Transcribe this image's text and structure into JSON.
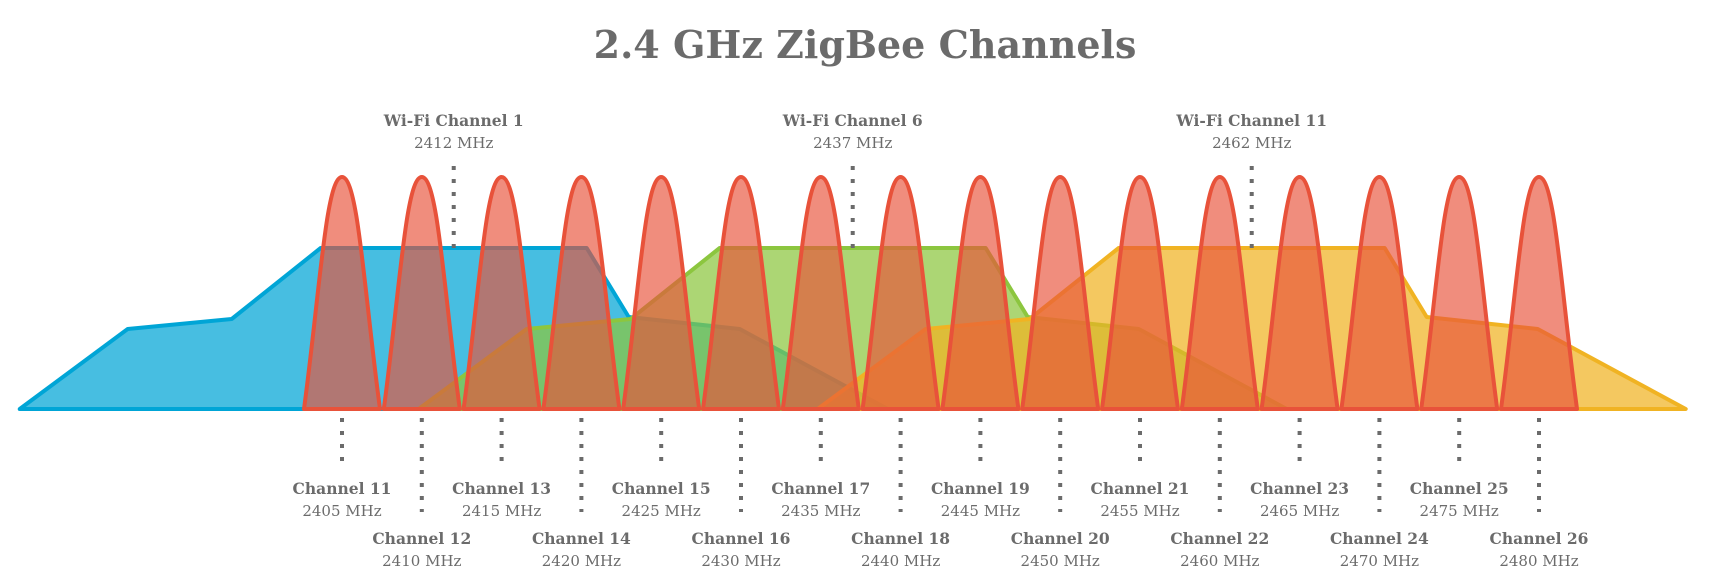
{
  "title": "2.4 GHz ZigBee Channels",
  "colors": {
    "wifi_1": "#00a5d6",
    "wifi_6": "#8cc63f",
    "wifi_11": "#f0b323",
    "zigbee": "#e8523a",
    "text": "#6b6b6b"
  },
  "wifi_channels": [
    {
      "label": "Wi-Fi Channel 1",
      "freq_label": "2412 MHz",
      "center_mhz": 2412
    },
    {
      "label": "Wi-Fi Channel 6",
      "freq_label": "2437 MHz",
      "center_mhz": 2437
    },
    {
      "label": "Wi-Fi Channel 11",
      "freq_label": "2462 MHz",
      "center_mhz": 2462
    }
  ],
  "zigbee_channels": [
    {
      "label": "Channel 11",
      "freq_label": "2405 MHz",
      "center_mhz": 2405
    },
    {
      "label": "Channel 12",
      "freq_label": "2410 MHz",
      "center_mhz": 2410
    },
    {
      "label": "Channel 13",
      "freq_label": "2415 MHz",
      "center_mhz": 2415
    },
    {
      "label": "Channel 14",
      "freq_label": "2420 MHz",
      "center_mhz": 2420
    },
    {
      "label": "Channel 15",
      "freq_label": "2425 MHz",
      "center_mhz": 2425
    },
    {
      "label": "Channel 16",
      "freq_label": "2430 MHz",
      "center_mhz": 2430
    },
    {
      "label": "Channel 17",
      "freq_label": "2435 MHz",
      "center_mhz": 2435
    },
    {
      "label": "Channel 18",
      "freq_label": "2440 MHz",
      "center_mhz": 2440
    },
    {
      "label": "Channel 19",
      "freq_label": "2445 MHz",
      "center_mhz": 2445
    },
    {
      "label": "Channel 20",
      "freq_label": "2450 MHz",
      "center_mhz": 2450
    },
    {
      "label": "Channel 21",
      "freq_label": "2455 MHz",
      "center_mhz": 2455
    },
    {
      "label": "Channel 22",
      "freq_label": "2460 MHz",
      "center_mhz": 2460
    },
    {
      "label": "Channel 23",
      "freq_label": "2465 MHz",
      "center_mhz": 2465
    },
    {
      "label": "Channel 24",
      "freq_label": "2470 MHz",
      "center_mhz": 2470
    },
    {
      "label": "Channel 25",
      "freq_label": "2475 MHz",
      "center_mhz": 2475
    },
    {
      "label": "Channel 26",
      "freq_label": "2480 MHz",
      "center_mhz": 2480
    }
  ]
}
